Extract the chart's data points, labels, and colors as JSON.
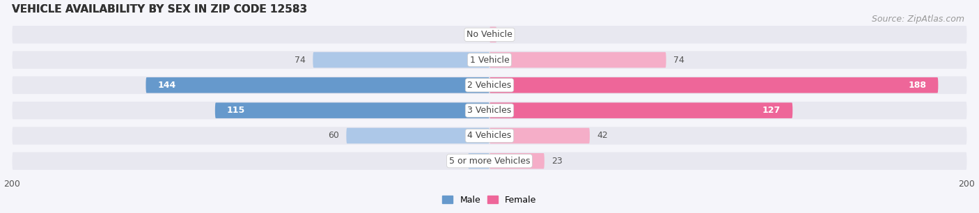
{
  "title": "VEHICLE AVAILABILITY BY SEX IN ZIP CODE 12583",
  "source": "Source: ZipAtlas.com",
  "categories": [
    "No Vehicle",
    "1 Vehicle",
    "2 Vehicles",
    "3 Vehicles",
    "4 Vehicles",
    "5 or more Vehicles"
  ],
  "male_values": [
    0,
    74,
    144,
    115,
    60,
    9
  ],
  "female_values": [
    3,
    74,
    188,
    127,
    42,
    23
  ],
  "male_color_light": "#adc8e8",
  "male_color_dark": "#6699cc",
  "female_color_light": "#f5aec8",
  "female_color_dark": "#ee6699",
  "row_bg_color": "#e8e8f0",
  "axis_limit": 200,
  "title_fontsize": 11,
  "source_fontsize": 9,
  "label_fontsize": 9,
  "category_fontsize": 9,
  "legend_fontsize": 9,
  "bar_height": 0.62,
  "background_color": "#f5f5fa"
}
